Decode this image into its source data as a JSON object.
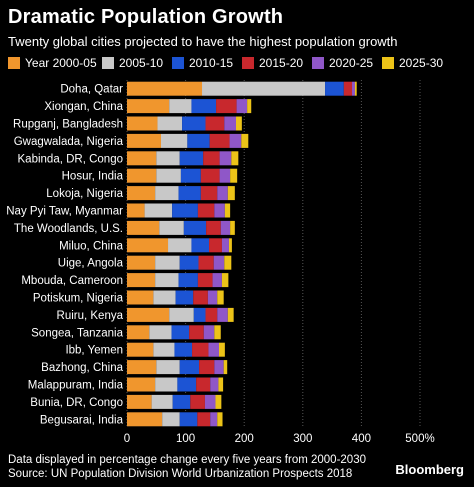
{
  "header": {
    "title": "Dramatic Population Growth",
    "subtitle": "Twenty global cities projected to have the highest population growth"
  },
  "footer": {
    "note": "Data displayed in percentage change every five years from 2000-2030",
    "source": "Source: UN Population Division World Urbanization Prospects 2018",
    "brand": "Bloomberg"
  },
  "chart_data": {
    "type": "bar",
    "orientation": "horizontal",
    "stacked": true,
    "title": "Dramatic Population Growth",
    "subtitle": "Twenty global cities projected to have the highest population growth",
    "xlabel": "",
    "ylabel": "",
    "xlim": [
      0,
      500
    ],
    "xticks": [
      0,
      100,
      200,
      300,
      400,
      500
    ],
    "xtick_labels": [
      "0",
      "100",
      "200",
      "300",
      "400",
      "500%"
    ],
    "grid": true,
    "legend_position": "top",
    "categories": [
      "Doha, Qatar",
      "Xiongan, China",
      "Rupganj, Bangladesh",
      "Gwagwalada, Nigeria",
      "Kabinda, DR, Congo",
      "Hosur, India",
      "Lokoja, Nigeria",
      "Nay Pyi Taw, Myanmar",
      "The Woodlands, U.S.",
      "Miluo, China",
      "Uige, Angola",
      "Mbouda, Cameroon",
      "Potiskum, Nigeria",
      "Ruiru, Kenya",
      "Songea, Tanzania",
      "Ibb, Yemen",
      "Bazhong, China",
      "Malappuram, India",
      "Bunia, DR, Congo",
      "Begusarai, India"
    ],
    "series": [
      {
        "name": "Year 2000-05",
        "color": "#f0962d",
        "values": [
          128,
          72,
          52,
          58,
          50,
          50,
          48,
          30,
          55,
          70,
          48,
          48,
          45,
          72,
          38,
          45,
          50,
          48,
          42,
          60
        ]
      },
      {
        "name": "2005-10",
        "color": "#c8c8c8",
        "values": [
          210,
          38,
          42,
          45,
          40,
          42,
          40,
          47,
          42,
          40,
          42,
          40,
          38,
          42,
          38,
          36,
          40,
          38,
          36,
          30
        ]
      },
      {
        "name": "2010-15",
        "color": "#1c54d4",
        "values": [
          32,
          42,
          40,
          38,
          40,
          34,
          38,
          44,
          38,
          30,
          32,
          33,
          30,
          20,
          30,
          30,
          33,
          32,
          30,
          30
        ]
      },
      {
        "name": "2015-20",
        "color": "#c8282d",
        "values": [
          14,
          35,
          32,
          34,
          28,
          32,
          28,
          28,
          25,
          22,
          26,
          25,
          25,
          20,
          25,
          28,
          26,
          24,
          25,
          22
        ]
      },
      {
        "name": "2020-25",
        "color": "#8f57c8",
        "values": [
          5,
          18,
          20,
          20,
          20,
          18,
          18,
          18,
          16,
          12,
          18,
          16,
          16,
          18,
          18,
          18,
          16,
          14,
          18,
          12
        ]
      },
      {
        "name": "2025-30",
        "color": "#ecc318",
        "values": [
          3,
          7,
          10,
          12,
          12,
          12,
          12,
          9,
          8,
          5,
          12,
          11,
          11,
          10,
          11,
          10,
          6,
          8,
          10,
          9
        ]
      }
    ]
  }
}
